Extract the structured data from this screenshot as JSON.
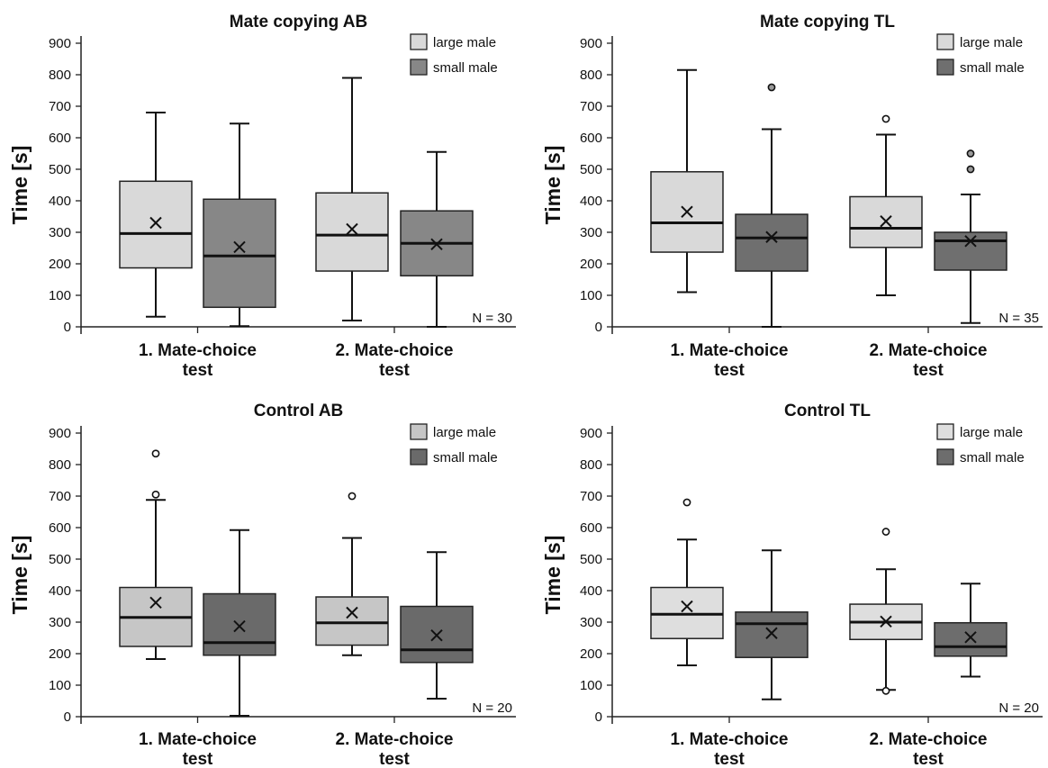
{
  "chart_data": [
    {
      "type": "box",
      "title": "Mate copying AB",
      "ylabel": "Time [s]",
      "ylim": [
        0,
        900
      ],
      "yticks": [
        0,
        100,
        200,
        300,
        400,
        500,
        600,
        700,
        800,
        900
      ],
      "categories": [
        [
          "1. Mate-choice",
          "test"
        ],
        [
          "2. Mate-choice",
          "test"
        ]
      ],
      "legend": [
        "large male",
        "small male"
      ],
      "legend_position": "top-right",
      "annotation": "N = 30",
      "series": [
        {
          "name": "large male",
          "color": "#d9d9d9",
          "boxes": [
            {
              "whisker_low": 32,
              "q1": 187,
              "median": 296,
              "q3": 462,
              "whisker_high": 680,
              "mean": 330,
              "outliers": []
            },
            {
              "whisker_low": 20,
              "q1": 177,
              "median": 291,
              "q3": 425,
              "whisker_high": 790,
              "mean": 310,
              "outliers": []
            }
          ]
        },
        {
          "name": "small male",
          "color": "#878787",
          "boxes": [
            {
              "whisker_low": 2,
              "q1": 62,
              "median": 225,
              "q3": 405,
              "whisker_high": 645,
              "mean": 253,
              "outliers": []
            },
            {
              "whisker_low": 0,
              "q1": 162,
              "median": 265,
              "q3": 368,
              "whisker_high": 555,
              "mean": 262,
              "outliers": []
            }
          ]
        }
      ]
    },
    {
      "type": "box",
      "title": "Mate copying TL",
      "ylabel": "Time [s]",
      "ylim": [
        0,
        900
      ],
      "yticks": [
        0,
        100,
        200,
        300,
        400,
        500,
        600,
        700,
        800,
        900
      ],
      "categories": [
        [
          "1. Mate-choice",
          "test"
        ],
        [
          "2. Mate-choice",
          "test"
        ]
      ],
      "legend": [
        "large male",
        "small male"
      ],
      "legend_position": "top-right",
      "annotation": "N = 35",
      "series": [
        {
          "name": "large male",
          "color": "#d9d9d9",
          "boxes": [
            {
              "whisker_low": 110,
              "q1": 237,
              "median": 330,
              "q3": 492,
              "whisker_high": 815,
              "mean": 365,
              "outliers": []
            },
            {
              "whisker_low": 100,
              "q1": 252,
              "median": 313,
              "q3": 413,
              "whisker_high": 610,
              "mean": 335,
              "outliers": [
                660
              ]
            }
          ]
        },
        {
          "name": "small male",
          "color": "#6f6f6f",
          "boxes": [
            {
              "whisker_low": 0,
              "q1": 177,
              "median": 282,
              "q3": 357,
              "whisker_high": 627,
              "mean": 285,
              "outliers": [
                760
              ]
            },
            {
              "whisker_low": 12,
              "q1": 180,
              "median": 273,
              "q3": 300,
              "whisker_high": 420,
              "mean": 272,
              "outliers": [
                500,
                550
              ]
            }
          ]
        }
      ]
    },
    {
      "type": "box",
      "title": "Control AB",
      "ylabel": "Time [s]",
      "ylim": [
        0,
        900
      ],
      "yticks": [
        0,
        100,
        200,
        300,
        400,
        500,
        600,
        700,
        800,
        900
      ],
      "categories": [
        [
          "1. Mate-choice",
          "test"
        ],
        [
          "2. Mate-choice",
          "test"
        ]
      ],
      "legend": [
        "large male",
        "small male"
      ],
      "legend_position": "top-right",
      "annotation": "N = 20",
      "series": [
        {
          "name": "large male",
          "color": "#c6c6c6",
          "boxes": [
            {
              "whisker_low": 183,
              "q1": 223,
              "median": 315,
              "q3": 410,
              "whisker_high": 688,
              "mean": 362,
              "outliers": [
                705,
                835
              ]
            },
            {
              "whisker_low": 195,
              "q1": 227,
              "median": 298,
              "q3": 380,
              "whisker_high": 567,
              "mean": 330,
              "outliers": [
                700
              ]
            }
          ]
        },
        {
          "name": "small male",
          "color": "#6a6a6a",
          "boxes": [
            {
              "whisker_low": 3,
              "q1": 195,
              "median": 235,
              "q3": 390,
              "whisker_high": 592,
              "mean": 287,
              "outliers": []
            },
            {
              "whisker_low": 57,
              "q1": 172,
              "median": 212,
              "q3": 350,
              "whisker_high": 522,
              "mean": 258,
              "outliers": []
            }
          ]
        }
      ]
    },
    {
      "type": "box",
      "title": "Control TL",
      "ylabel": "Time [s]",
      "ylim": [
        0,
        900
      ],
      "yticks": [
        0,
        100,
        200,
        300,
        400,
        500,
        600,
        700,
        800,
        900
      ],
      "categories": [
        [
          "1. Mate-choice",
          "test"
        ],
        [
          "2. Mate-choice",
          "test"
        ]
      ],
      "legend": [
        "large male",
        "small male"
      ],
      "legend_position": "top-right",
      "annotation": "N = 20",
      "series": [
        {
          "name": "large male",
          "color": "#dedede",
          "boxes": [
            {
              "whisker_low": 163,
              "q1": 248,
              "median": 325,
              "q3": 410,
              "whisker_high": 562,
              "mean": 350,
              "outliers": [
                680
              ]
            },
            {
              "whisker_low": 85,
              "q1": 245,
              "median": 300,
              "q3": 357,
              "whisker_high": 468,
              "mean": 302,
              "outliers": [
                82,
                587
              ]
            }
          ]
        },
        {
          "name": "small male",
          "color": "#6d6d6d",
          "boxes": [
            {
              "whisker_low": 55,
              "q1": 188,
              "median": 295,
              "q3": 332,
              "whisker_high": 528,
              "mean": 265,
              "outliers": []
            },
            {
              "whisker_low": 127,
              "q1": 192,
              "median": 222,
              "q3": 298,
              "whisker_high": 422,
              "mean": 252,
              "outliers": []
            }
          ]
        }
      ]
    }
  ]
}
